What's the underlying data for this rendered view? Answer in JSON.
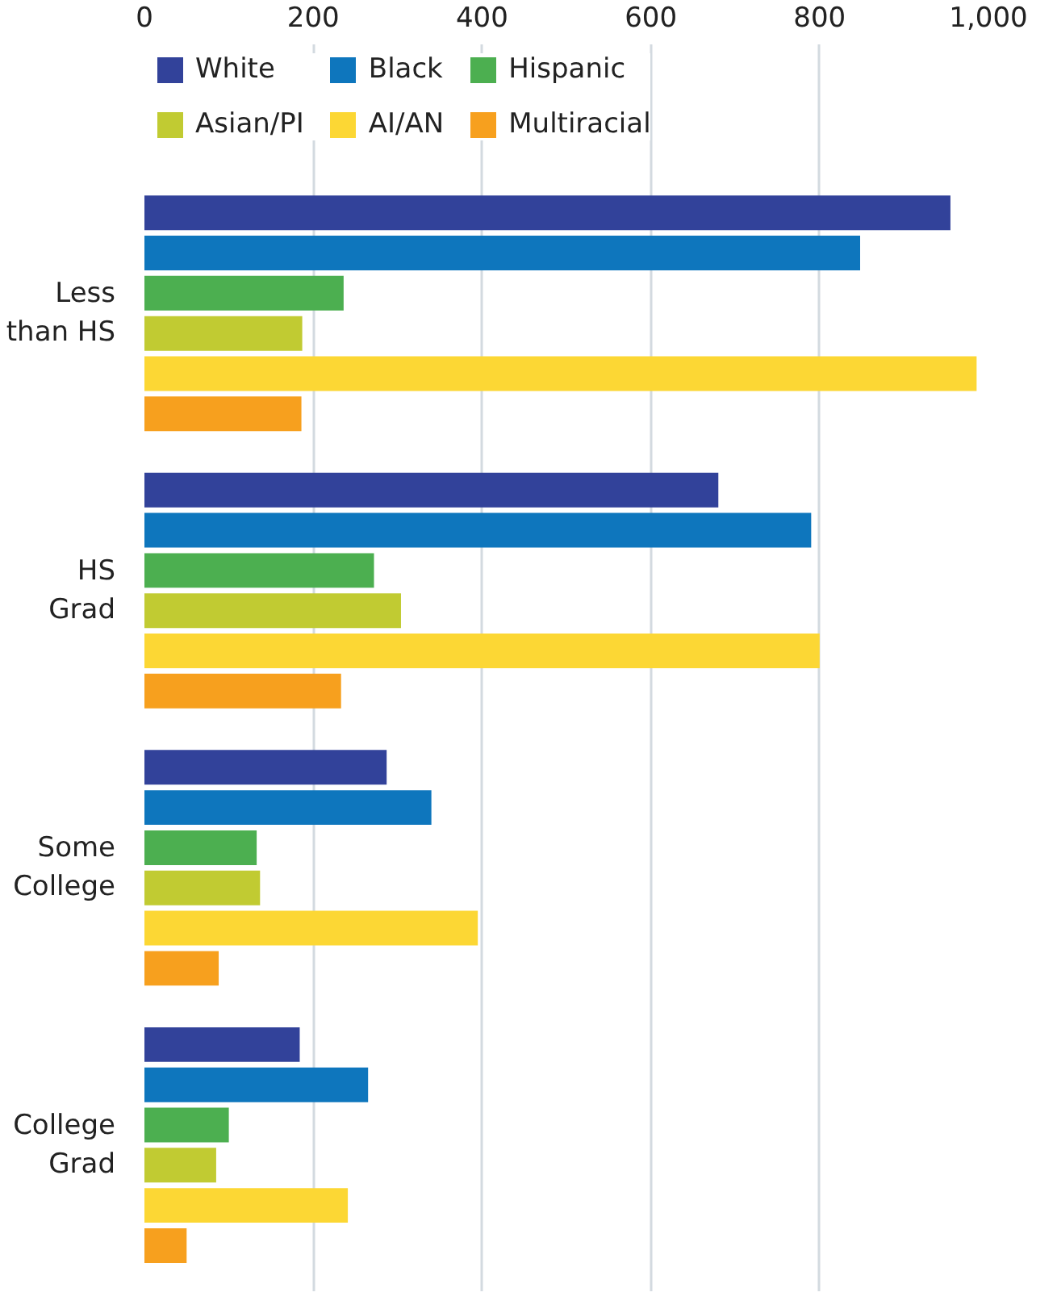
{
  "chart_data": {
    "type": "bar",
    "orientation": "horizontal",
    "categories": [
      "Less\nthan HS",
      "HS\nGrad",
      "Some\nCollege",
      "College\nGrad"
    ],
    "series": [
      {
        "name": "White",
        "color": "#32429a",
        "values": [
          955,
          680,
          287,
          184
        ]
      },
      {
        "name": "Black",
        "color": "#0e76bd",
        "values": [
          848,
          790,
          340,
          265
        ]
      },
      {
        "name": "Hispanic",
        "color": "#4caf50",
        "values": [
          236,
          272,
          133,
          100
        ]
      },
      {
        "name": "Asian/PI",
        "color": "#c1cb32",
        "values": [
          187,
          304,
          137,
          85
        ]
      },
      {
        "name": "AI/AN",
        "color": "#fcd734",
        "values": [
          986,
          800,
          395,
          241
        ]
      },
      {
        "name": "Multiracial",
        "color": "#f7a01e",
        "values": [
          186,
          233,
          88,
          50
        ]
      }
    ],
    "xlim": [
      0,
      1000
    ],
    "xticks": [
      0,
      200,
      400,
      600,
      800,
      {
        "value": 1000,
        "label": "1,000"
      }
    ],
    "grid": "x",
    "legend": "top left"
  }
}
